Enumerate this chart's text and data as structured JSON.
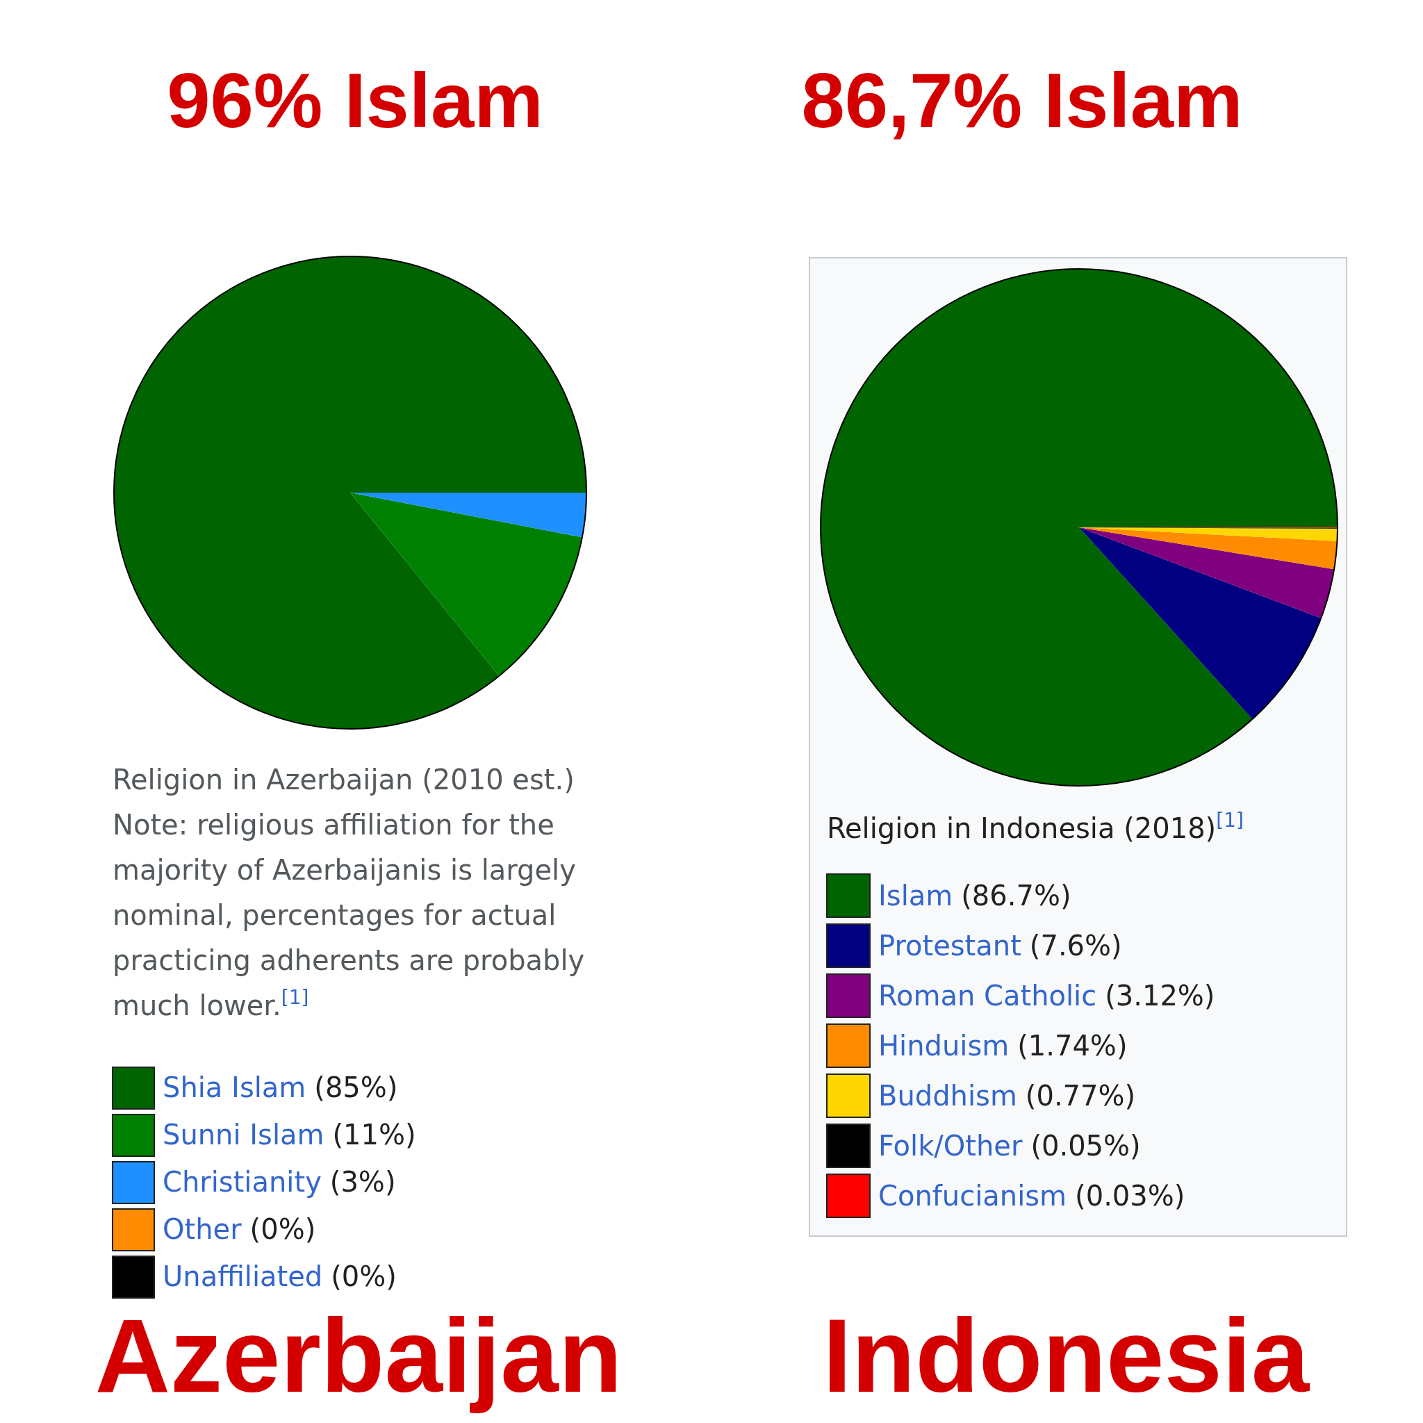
{
  "chart_data": [
    {
      "type": "pie",
      "title": "96% Islam",
      "subtitle": "Azerbaijan",
      "annotations": [
        "Religion in Azerbaijan (2010 est.)",
        "Note: religious affiliation for the",
        "majority of Azerbaijanis is largely",
        "nominal, percentages for actual",
        "practicing adherents are probably",
        "much lower.$^{[1]}$"
      ],
      "categories": [
        "Shia Islam",
        "Sunni Islam",
        "Christianity",
        "Other",
        "Unaffiliated"
      ],
      "values": [
        85,
        11,
        3,
        0,
        0
      ],
      "value_labels": [
        "(85%)",
        "(11%)",
        "(3%)",
        "(0%)",
        "(0%)"
      ],
      "colors": [
        "#006400",
        "#008000",
        "#1e90ff",
        "#ff8c00",
        "#000000"
      ],
      "legend": "bottom"
    },
    {
      "type": "pie",
      "title": "86,7% Islam",
      "subtitle": "Indonesia",
      "annotations": [
        "Religion in Indonesia (2018)$^{[1]}$"
      ],
      "categories": [
        "Islam",
        "Protestant",
        "Roman Catholic",
        "Hinduism",
        "Buddhism",
        "Folk/Other",
        "Confucianism"
      ],
      "values": [
        86.7,
        7.6,
        3.12,
        1.74,
        0.77,
        0.05,
        0.03
      ],
      "value_labels": [
        "(86.7%)",
        "(7.6%)",
        "(3.12%)",
        "(1.74%)",
        "(0.77%)",
        "(0.05%)",
        "(0.03%)"
      ],
      "colors": [
        "#006400",
        "#000080",
        "#800080",
        "#ff8c00",
        "#ffd700",
        "#000000",
        "#ff0000"
      ],
      "legend": "bottom"
    }
  ]
}
